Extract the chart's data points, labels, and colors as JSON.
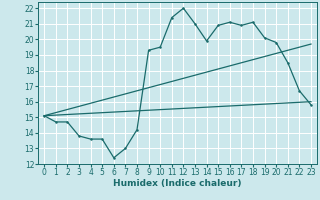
{
  "xlabel": "Humidex (Indice chaleur)",
  "bg_color": "#cce8ec",
  "grid_color": "#ffffff",
  "line_color": "#1a6b6b",
  "xlim": [
    -0.5,
    23.5
  ],
  "ylim": [
    12,
    22.4
  ],
  "x_ticks": [
    0,
    1,
    2,
    3,
    4,
    5,
    6,
    7,
    8,
    9,
    10,
    11,
    12,
    13,
    14,
    15,
    16,
    17,
    18,
    19,
    20,
    21,
    22,
    23
  ],
  "y_ticks": [
    12,
    13,
    14,
    15,
    16,
    17,
    18,
    19,
    20,
    21,
    22
  ],
  "line1_x": [
    0,
    1,
    2,
    3,
    4,
    5,
    6,
    7,
    8,
    9,
    10,
    11,
    12,
    13,
    14,
    15,
    16,
    17,
    18,
    19,
    20,
    21,
    22,
    23
  ],
  "line1_y": [
    15.1,
    14.7,
    14.7,
    13.8,
    13.6,
    13.6,
    12.4,
    13.0,
    14.2,
    19.3,
    19.5,
    21.4,
    22.0,
    21.0,
    19.9,
    20.9,
    21.1,
    20.9,
    21.1,
    20.1,
    19.8,
    18.5,
    16.7,
    15.8
  ],
  "line2_x": [
    0,
    23
  ],
  "line2_y": [
    15.1,
    19.7
  ],
  "line3_x": [
    0,
    23
  ],
  "line3_y": [
    15.1,
    16.0
  ]
}
